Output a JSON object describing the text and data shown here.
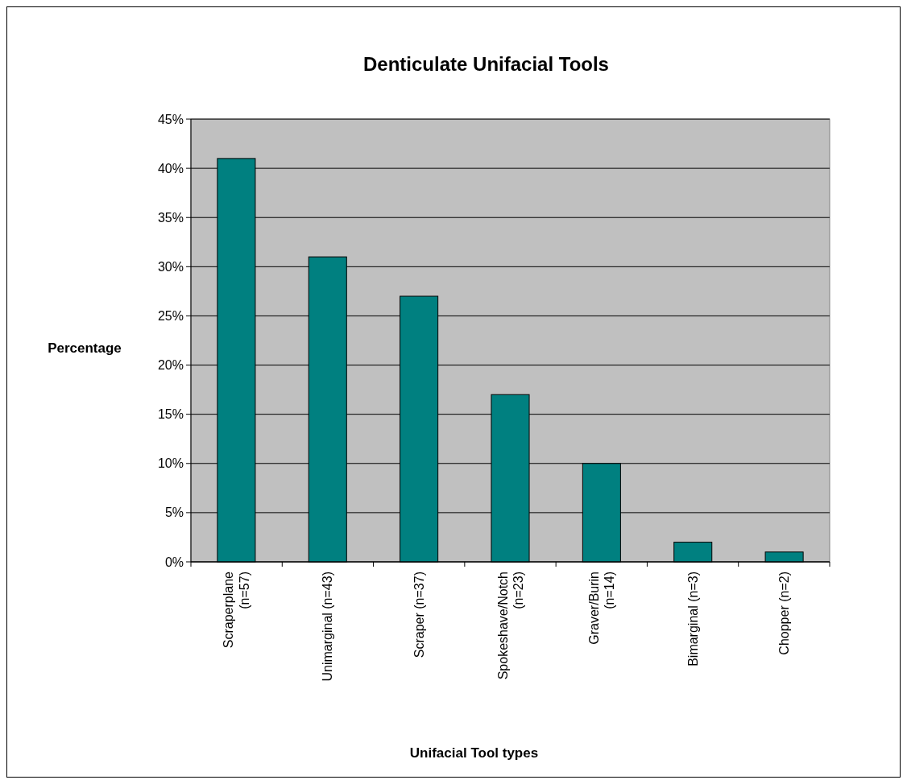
{
  "chart_data": {
    "type": "bar",
    "title": "Denticulate Unifacial Tools",
    "xlabel": "Unifacial Tool types",
    "ylabel": "Percentage",
    "categories": [
      "Scraperplane (n=57)",
      "Unimarginal (n=43)",
      "Scraper (n=37)",
      "Spokeshave/Notch (n=23)",
      "Graver/Burin (n=14)",
      "Bimarginal (n=3)",
      "Chopper (n=2)"
    ],
    "values": [
      41,
      31,
      27,
      17,
      10,
      2,
      1
    ],
    "color": "#008080",
    "ylim": [
      0,
      45
    ],
    "yticks": [
      {
        "value": 0,
        "label": "0%"
      },
      {
        "value": 5,
        "label": "5%"
      },
      {
        "value": 10,
        "label": "10%"
      },
      {
        "value": 15,
        "label": "15%"
      },
      {
        "value": 20,
        "label": "20%"
      },
      {
        "value": 25,
        "label": "25%"
      },
      {
        "value": 30,
        "label": "30%"
      },
      {
        "value": 35,
        "label": "35%"
      },
      {
        "value": 40,
        "label": "40%"
      },
      {
        "value": 45,
        "label": "45%"
      }
    ],
    "grid": "y"
  }
}
